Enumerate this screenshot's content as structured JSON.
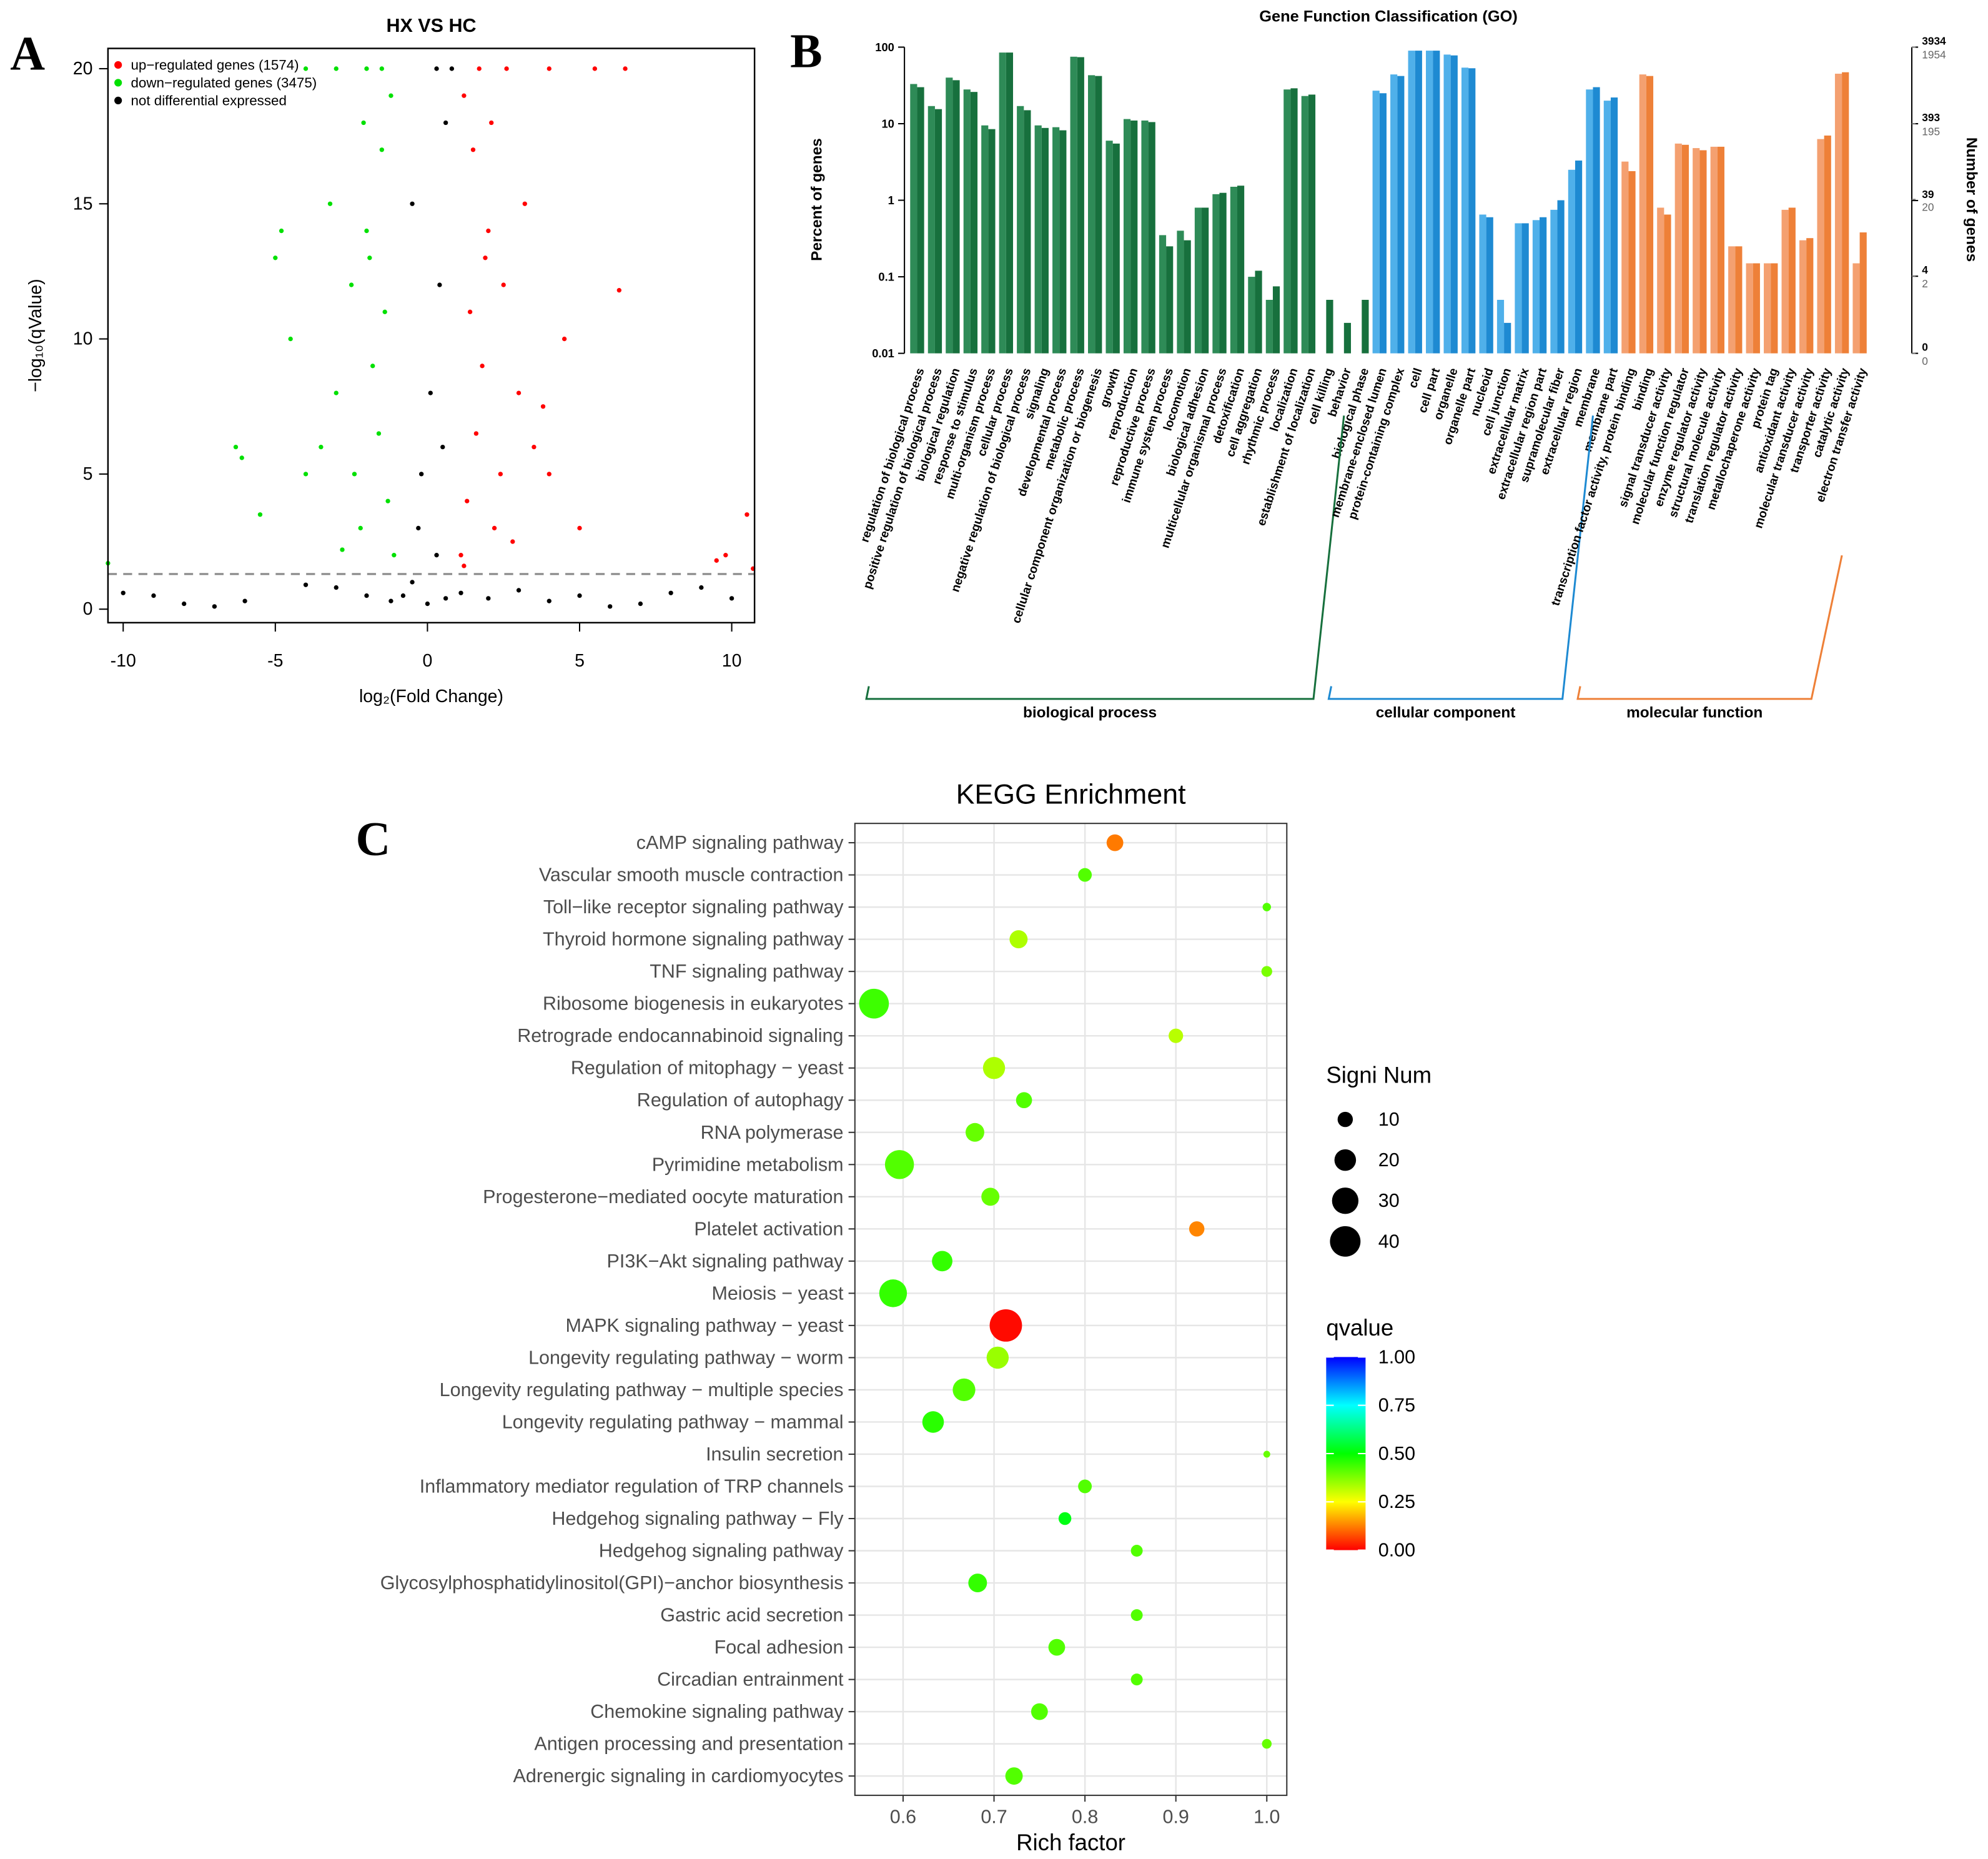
{
  "chart_data": [
    {
      "type": "scatter",
      "panel": "A",
      "title": "HX VS HC",
      "xlabel": "log₂(Fold Change)",
      "ylabel": "−log₁₀(qValue)",
      "xlim": [
        -10.5,
        10.75
      ],
      "ylim": [
        -0.5,
        20.75
      ],
      "xticks": [
        -10,
        -5,
        0,
        5,
        10
      ],
      "yticks": [
        0,
        5,
        10,
        15,
        20
      ],
      "threshold": 1.3,
      "legend": "top-left",
      "series": [
        {
          "name": "up−regulated genes (1574)",
          "color": "#ff0000",
          "x": [
            1.2,
            1.5,
            2,
            2.5,
            1.8,
            3,
            3.5,
            1.3,
            2.2,
            4,
            1.1,
            2.8,
            5,
            4.5,
            3.2,
            6.3,
            9.8,
            10.5,
            1.6,
            2.4,
            1.4,
            2.1,
            3.8,
            1.9,
            1.2,
            9.5,
            10.7,
            2.6,
            4,
            5.5,
            6.5,
            1.7
          ],
          "y": [
            19,
            17,
            14,
            12,
            9,
            8,
            6,
            4,
            3,
            5,
            2,
            2.5,
            3,
            10,
            15,
            11.8,
            2,
            3.5,
            6.5,
            5,
            11,
            18,
            7.5,
            13,
            1.6,
            1.8,
            1.5,
            20,
            20,
            20,
            20,
            20
          ]
        },
        {
          "name": "down−regulated genes (3475)",
          "color": "#00e000",
          "x": [
            -1.2,
            -1.5,
            -2,
            -2.5,
            -1.8,
            -3,
            -3.5,
            -1.3,
            -2.2,
            -4,
            -4.8,
            -5,
            -6.3,
            -6.1,
            -5.5,
            -1.6,
            -2.4,
            -1.4,
            -2.1,
            -3.2,
            -1.9,
            -10.5,
            -1.1,
            -2.8,
            -4.5,
            -2,
            -3,
            -4,
            -1.5
          ],
          "y": [
            19,
            17,
            14,
            12,
            9,
            8,
            6,
            4,
            3,
            5,
            14,
            13,
            6,
            5.6,
            3.5,
            6.5,
            5,
            11,
            18,
            15,
            13,
            1.7,
            2,
            2.2,
            10,
            20,
            20,
            20,
            20
          ]
        },
        {
          "name": "not differential expressed",
          "color": "#000000",
          "x": [
            -0.5,
            0.3,
            0,
            -0.8,
            0.6,
            -0.2,
            0.1,
            0.4,
            -0.5,
            0.6,
            0.3,
            0.8,
            -0.3,
            0.5,
            -9,
            -8,
            -10,
            -7,
            8,
            9,
            7,
            10,
            6,
            -3,
            3,
            2,
            -2,
            -4,
            4,
            5,
            -6,
            -1.2,
            1.1
          ],
          "y": [
            1,
            2,
            0.2,
            0.5,
            0.4,
            5,
            8,
            12,
            15,
            18,
            20,
            20,
            3,
            6,
            0.5,
            0.2,
            0.6,
            0.1,
            0.6,
            0.8,
            0.2,
            0.4,
            0.1,
            0.8,
            0.7,
            0.4,
            0.5,
            0.9,
            0.3,
            0.5,
            0.3,
            0.3,
            0.6
          ]
        }
      ]
    },
    {
      "type": "bar",
      "panel": "B",
      "title": "Gene Function Classification (GO)",
      "ylabel": "Percent of genes",
      "y2label": "Number of genes",
      "log": true,
      "ylim": [
        0.01,
        100
      ],
      "yticks": [
        0.01,
        0.1,
        1,
        10,
        100
      ],
      "y2lim": [
        0.3934,
        3934
      ],
      "y2ticks": [
        3934,
        393,
        39,
        4,
        {
          "value": 0.3934,
          "label": "0"
        }
      ],
      "y3lim": [
        0.1954,
        1954
      ],
      "y3ticks": [
        1954,
        195,
        20,
        2,
        {
          "value": 0.1954,
          "label": "0"
        }
      ],
      "groups": [
        {
          "name": "biological process",
          "colors": [
            "#2e8b57",
            "#17703d"
          ],
          "categories": [
            "regulation of biological process",
            "positive regulation of biological process",
            "biological regulation",
            "response to stimulus",
            "multi-organism process",
            "cellular process",
            "negative regulation of biological process",
            "signaling",
            "developmental process",
            "metabolic process",
            "cellular component organization or biogenesis",
            "growth",
            "reproduction",
            "reproductive process",
            "immune system process",
            "locomotion",
            "biological adhesion",
            "multicellular organismal process",
            "detoxification",
            "cell aggregation",
            "rhythmic process",
            "localization",
            "establishment of localization",
            "cell killing",
            "behavior",
            "biological phase"
          ],
          "values": [
            [
              33,
              30
            ],
            [
              17,
              15.5
            ],
            [
              40,
              37
            ],
            [
              28,
              26
            ],
            [
              9.5,
              8.5
            ],
            [
              85,
              85
            ],
            [
              17,
              15
            ],
            [
              9.5,
              8.8
            ],
            [
              9,
              8.2
            ],
            [
              75,
              74
            ],
            [
              43,
              42
            ],
            [
              6,
              5.5
            ],
            [
              11.5,
              11
            ],
            [
              11,
              10.5
            ],
            [
              0.35,
              0.25
            ],
            [
              0.4,
              0.3
            ],
            [
              0.8,
              0.8
            ],
            [
              1.2,
              1.25
            ],
            [
              1.5,
              1.55
            ],
            [
              0.1,
              0.12
            ],
            [
              0.05,
              0.075
            ],
            [
              28,
              29
            ],
            [
              23,
              24
            ],
            [
              null,
              0.05
            ],
            [
              null,
              0.025
            ],
            [
              null,
              0.05
            ]
          ]
        },
        {
          "name": "cellular component",
          "colors": [
            "#4fb0ea",
            "#1e8ad2"
          ],
          "categories": [
            "membrane-enclosed lumen",
            "protein-containing complex",
            "cell",
            "cell part",
            "organelle",
            "organelle part",
            "nucleoid",
            "cell junction",
            "extracellular matrix",
            "extracellular region part",
            "supramolecular fiber",
            "extracellular region",
            "membrane",
            "membrane part"
          ],
          "values": [
            [
              27,
              25
            ],
            [
              44,
              42
            ],
            [
              90,
              90
            ],
            [
              90,
              90
            ],
            [
              80,
              78
            ],
            [
              54,
              53
            ],
            [
              0.65,
              0.6
            ],
            [
              0.05,
              0.025
            ],
            [
              0.5,
              0.5
            ],
            [
              0.55,
              0.6
            ],
            [
              0.75,
              1
            ],
            [
              2.5,
              3.3
            ],
            [
              28,
              30
            ],
            [
              20,
              22
            ]
          ]
        },
        {
          "name": "molecular function",
          "colors": [
            "#f4a070",
            "#ee8038"
          ],
          "categories": [
            "transcription factor activity, protein binding",
            "binding",
            "signal transducer activity",
            "molecular function regulator",
            "enzyme regulator activity",
            "structural molecule activity",
            "translation regulator activity",
            "metallochaperone activity",
            "protein tag",
            "antioxidant activity",
            "molecular transducer activity",
            "transporter activity",
            "catalytic activity",
            "electron transfer activity"
          ],
          "values": [
            [
              3.2,
              2.4
            ],
            [
              44,
              42
            ],
            [
              0.8,
              0.65
            ],
            [
              5.5,
              5.3
            ],
            [
              4.8,
              4.5
            ],
            [
              5,
              5
            ],
            [
              0.25,
              0.25
            ],
            [
              0.15,
              0.15
            ],
            [
              0.15,
              0.15
            ],
            [
              0.75,
              0.8
            ],
            [
              0.3,
              0.32
            ],
            [
              6.3,
              7
            ],
            [
              45,
              47
            ],
            [
              0.15,
              0.38
            ]
          ]
        }
      ]
    },
    {
      "type": "bubble",
      "panel": "C",
      "title": "KEGG Enrichment",
      "xlabel": "Rich factor",
      "categories": [
        "cAMP signaling pathway",
        "Vascular smooth muscle contraction",
        "Toll−like receptor signaling pathway",
        "Thyroid hormone signaling pathway",
        "TNF signaling pathway",
        "Ribosome biogenesis in eukaryotes",
        "Retrograde endocannabinoid signaling",
        "Regulation of mitophagy − yeast",
        "Regulation of autophagy",
        "RNA polymerase",
        "Pyrimidine metabolism",
        "Progesterone−mediated oocyte maturation",
        "Platelet activation",
        "PI3K−Akt signaling pathway",
        "Meiosis − yeast",
        "MAPK signaling pathway − yeast",
        "Longevity regulating pathway − worm",
        "Longevity regulating pathway − multiple species",
        "Longevity regulating pathway − mammal",
        "Insulin secretion",
        "Inflammatory mediator regulation of TRP channels",
        "Hedgehog signaling pathway − Fly",
        "Hedgehog signaling pathway",
        "Glycosylphosphatidylinositol(GPI)−anchor biosynthesis",
        "Gastric acid secretion",
        "Focal adhesion",
        "Circadian entrainment",
        "Chemokine signaling pathway",
        "Antigen processing and presentation",
        "Adrenergic signaling in cardiomyocytes"
      ],
      "x": [
        0.833,
        0.8,
        1,
        0.727,
        1,
        0.568,
        0.9,
        0.7,
        0.733,
        0.679,
        0.596,
        0.696,
        0.923,
        0.643,
        0.589,
        0.713,
        0.704,
        0.667,
        0.633,
        1,
        0.8,
        0.778,
        0.857,
        0.682,
        0.857,
        0.769,
        0.857,
        0.75,
        1,
        0.722
      ],
      "size": [
        12,
        8,
        3,
        14,
        5,
        38,
        9,
        21,
        11,
        15,
        36,
        14,
        10,
        18,
        33,
        45,
        21,
        22,
        20,
        2,
        8,
        7,
        6,
        15,
        6,
        12,
        6,
        12,
        4,
        13
      ],
      "qvalue": [
        0.12,
        0.42,
        0.42,
        0.33,
        0.38,
        0.44,
        0.32,
        0.33,
        0.42,
        0.4,
        0.42,
        0.4,
        0.13,
        0.45,
        0.45,
        0.01,
        0.35,
        0.42,
        0.46,
        0.4,
        0.42,
        0.52,
        0.42,
        0.45,
        0.42,
        0.42,
        0.42,
        0.42,
        0.4,
        0.42
      ],
      "xlim": [
        0.547,
        1.022
      ],
      "xticks": [
        0.6,
        0.7,
        0.8,
        0.9,
        {
          "value": 1,
          "label": "1.0"
        }
      ],
      "grid": true,
      "size_legend": {
        "title": "Signi Num",
        "values": [
          10,
          20,
          30,
          40
        ]
      },
      "colorbar": {
        "title": "qvalue",
        "lim": [
          0,
          1
        ],
        "ticks": [
          {
            "value": 1,
            "label": "1.00"
          },
          0.75,
          {
            "value": 0.5,
            "label": "0.50"
          },
          0.25,
          {
            "value": 0,
            "label": "0.00"
          }
        ],
        "colors": [
          "#ff0000",
          "#ffff00",
          "#00ff00",
          "#00ffff",
          "#0000ff"
        ]
      }
    }
  ]
}
